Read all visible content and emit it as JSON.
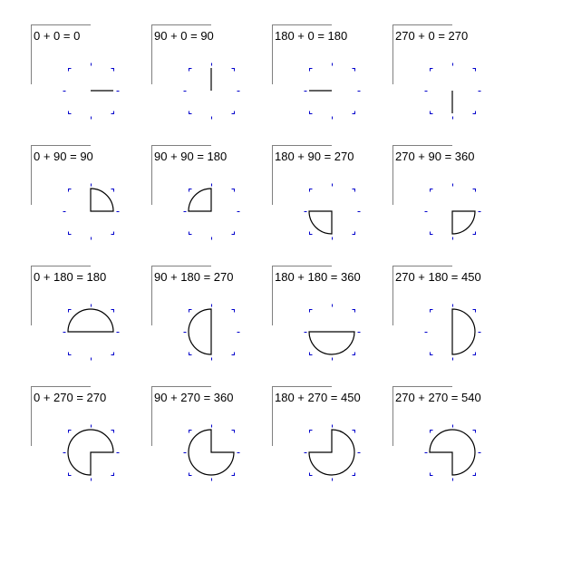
{
  "colors": {
    "frame": "#808080",
    "shape": "#000000",
    "marker": "#0000cc",
    "marker_dim": "#808000",
    "background": "#ffffff"
  },
  "cells": [
    {
      "label": "0 + 0 = 0",
      "start": 0,
      "sweep": 0
    },
    {
      "label": "90 + 0 = 90",
      "start": 90,
      "sweep": 0
    },
    {
      "label": "180 + 0 = 180",
      "start": 180,
      "sweep": 0
    },
    {
      "label": "270 + 0 = 270",
      "start": 270,
      "sweep": 0
    },
    {
      "label": "0 + 90 = 90",
      "start": 0,
      "sweep": 90
    },
    {
      "label": "90 + 90 = 180",
      "start": 90,
      "sweep": 90
    },
    {
      "label": "180 + 90 = 270",
      "start": 180,
      "sweep": 90
    },
    {
      "label": "270 + 90 = 360",
      "start": 270,
      "sweep": 90
    },
    {
      "label": "0 + 180 = 180",
      "start": 0,
      "sweep": 180
    },
    {
      "label": "90 + 180 = 270",
      "start": 90,
      "sweep": 180
    },
    {
      "label": "180 + 180 = 360",
      "start": 180,
      "sweep": 180
    },
    {
      "label": "270 + 180 = 450",
      "start": 270,
      "sweep": 180
    },
    {
      "label": "0 + 270 = 270",
      "start": 0,
      "sweep": 270
    },
    {
      "label": "90 + 270 = 360",
      "start": 90,
      "sweep": 270
    },
    {
      "label": "180 + 270 = 450",
      "start": 180,
      "sweep": 270
    },
    {
      "label": "270 + 270 = 540",
      "start": 270,
      "sweep": 270
    }
  ]
}
